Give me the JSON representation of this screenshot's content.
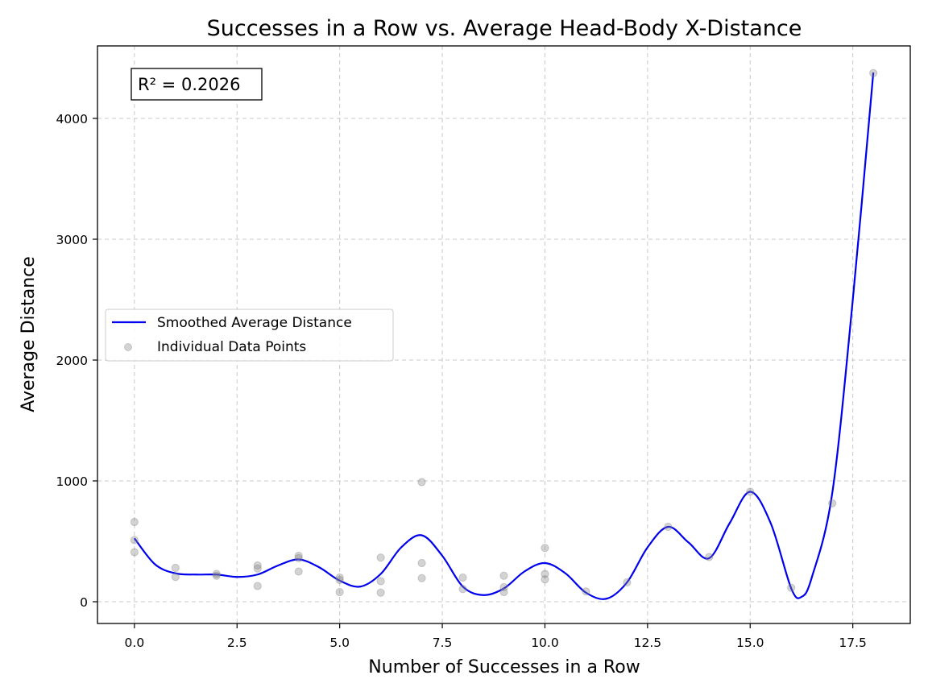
{
  "chart_data": {
    "type": "scatter",
    "title": "Successes in a Row vs. Average Head-Body X-Distance",
    "xlabel": "Number of Successes in a Row",
    "ylabel": "Average Distance",
    "xlim": [
      -0.9,
      18.9
    ],
    "ylim": [
      -180,
      4600
    ],
    "x_ticks": [
      0.0,
      2.5,
      5.0,
      7.5,
      10.0,
      12.5,
      15.0,
      17.5
    ],
    "x_tick_labels": [
      "0.0",
      "2.5",
      "5.0",
      "7.5",
      "10.0",
      "12.5",
      "15.0",
      "17.5"
    ],
    "y_ticks": [
      0,
      1000,
      2000,
      3000,
      4000
    ],
    "y_tick_labels": [
      "0",
      "1000",
      "2000",
      "3000",
      "4000"
    ],
    "grid": true,
    "legend_position": "center-left",
    "annotation": "R² = 0.2026",
    "series": [
      {
        "name": "Smoothed Average Distance",
        "kind": "line",
        "color": "#0000ee",
        "x": [
          0,
          0.5,
          1,
          1.5,
          2,
          2.5,
          3,
          3.5,
          4,
          4.5,
          5,
          5.5,
          6,
          6.5,
          7,
          7.5,
          8,
          8.5,
          9,
          9.5,
          10,
          10.5,
          11,
          11.5,
          12,
          12.5,
          13,
          13.5,
          14,
          14.5,
          15,
          15.5,
          16,
          16.25,
          16.5,
          17,
          17.5,
          18
        ],
        "y": [
          525,
          310,
          235,
          225,
          225,
          205,
          225,
          300,
          350,
          285,
          175,
          125,
          230,
          450,
          550,
          380,
          125,
          55,
          110,
          250,
          320,
          235,
          75,
          25,
          160,
          450,
          620,
          490,
          360,
          650,
          910,
          650,
          110,
          40,
          200,
          900,
          2500,
          4380
        ]
      },
      {
        "name": "Individual Data Points",
        "kind": "scatter",
        "color": "#808080",
        "x": [
          0,
          0,
          0,
          1,
          1,
          2,
          2,
          3,
          3,
          3,
          4,
          4,
          4,
          5,
          5,
          5,
          6,
          6,
          6,
          7,
          7,
          7,
          8,
          8,
          9,
          9,
          9,
          10,
          10,
          10,
          11,
          12,
          13,
          14,
          15,
          16,
          17,
          18
        ],
        "y": [
          660,
          410,
          510,
          280,
          205,
          230,
          215,
          275,
          300,
          130,
          380,
          360,
          250,
          200,
          180,
          80,
          365,
          170,
          75,
          990,
          320,
          195,
          200,
          105,
          215,
          120,
          80,
          445,
          230,
          185,
          85,
          160,
          620,
          370,
          910,
          115,
          815,
          4375
        ]
      }
    ]
  }
}
